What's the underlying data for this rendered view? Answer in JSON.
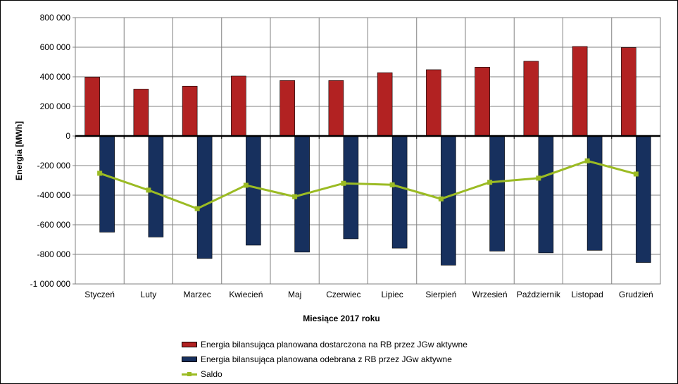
{
  "chart_data": {
    "type": "bar",
    "xlabel": "Miesiące 2017  roku",
    "ylabel": "Energia  [MWh]",
    "ylim": [
      -1000000,
      800000
    ],
    "yticks": [
      800000,
      600000,
      400000,
      200000,
      0,
      -200000,
      -400000,
      -600000,
      -800000,
      -1000000
    ],
    "ytick_labels": [
      "800 000",
      "600 000",
      "400 000",
      "200 000",
      "0",
      "-200 000",
      "-400 000",
      "-600 000",
      "-800 000",
      "-1 000 000"
    ],
    "grid": true,
    "legend_position": "bottom",
    "categories": [
      "Styczeń",
      "Luty",
      "Marzec",
      "Kwiecień",
      "Maj",
      "Czerwiec",
      "Lipiec",
      "Sierpień",
      "Wrzesień",
      "Październik",
      "Listopad",
      "Grudzień"
    ],
    "series": [
      {
        "name": "Energia bilansująca planowana dostarczona na RB przez JGw aktywne",
        "kind": "bar",
        "color": "#b22222",
        "values": [
          398000,
          317000,
          337000,
          405000,
          375000,
          375000,
          428000,
          448000,
          465000,
          505000,
          605000,
          598000
        ]
      },
      {
        "name": "Energia bilansująca planowana odebrana z RB przez JGw aktywne",
        "kind": "bar",
        "color": "#17305e",
        "values": [
          -650000,
          -683000,
          -828000,
          -738000,
          -785000,
          -695000,
          -758000,
          -873000,
          -778000,
          -790000,
          -773000,
          -855000
        ]
      },
      {
        "name": "Saldo",
        "kind": "line",
        "color": "#9bbb23",
        "values": [
          -252000,
          -366000,
          -491000,
          -333000,
          -410000,
          -320000,
          -330000,
          -425000,
          -313000,
          -285000,
          -168000,
          -257000
        ]
      }
    ]
  }
}
